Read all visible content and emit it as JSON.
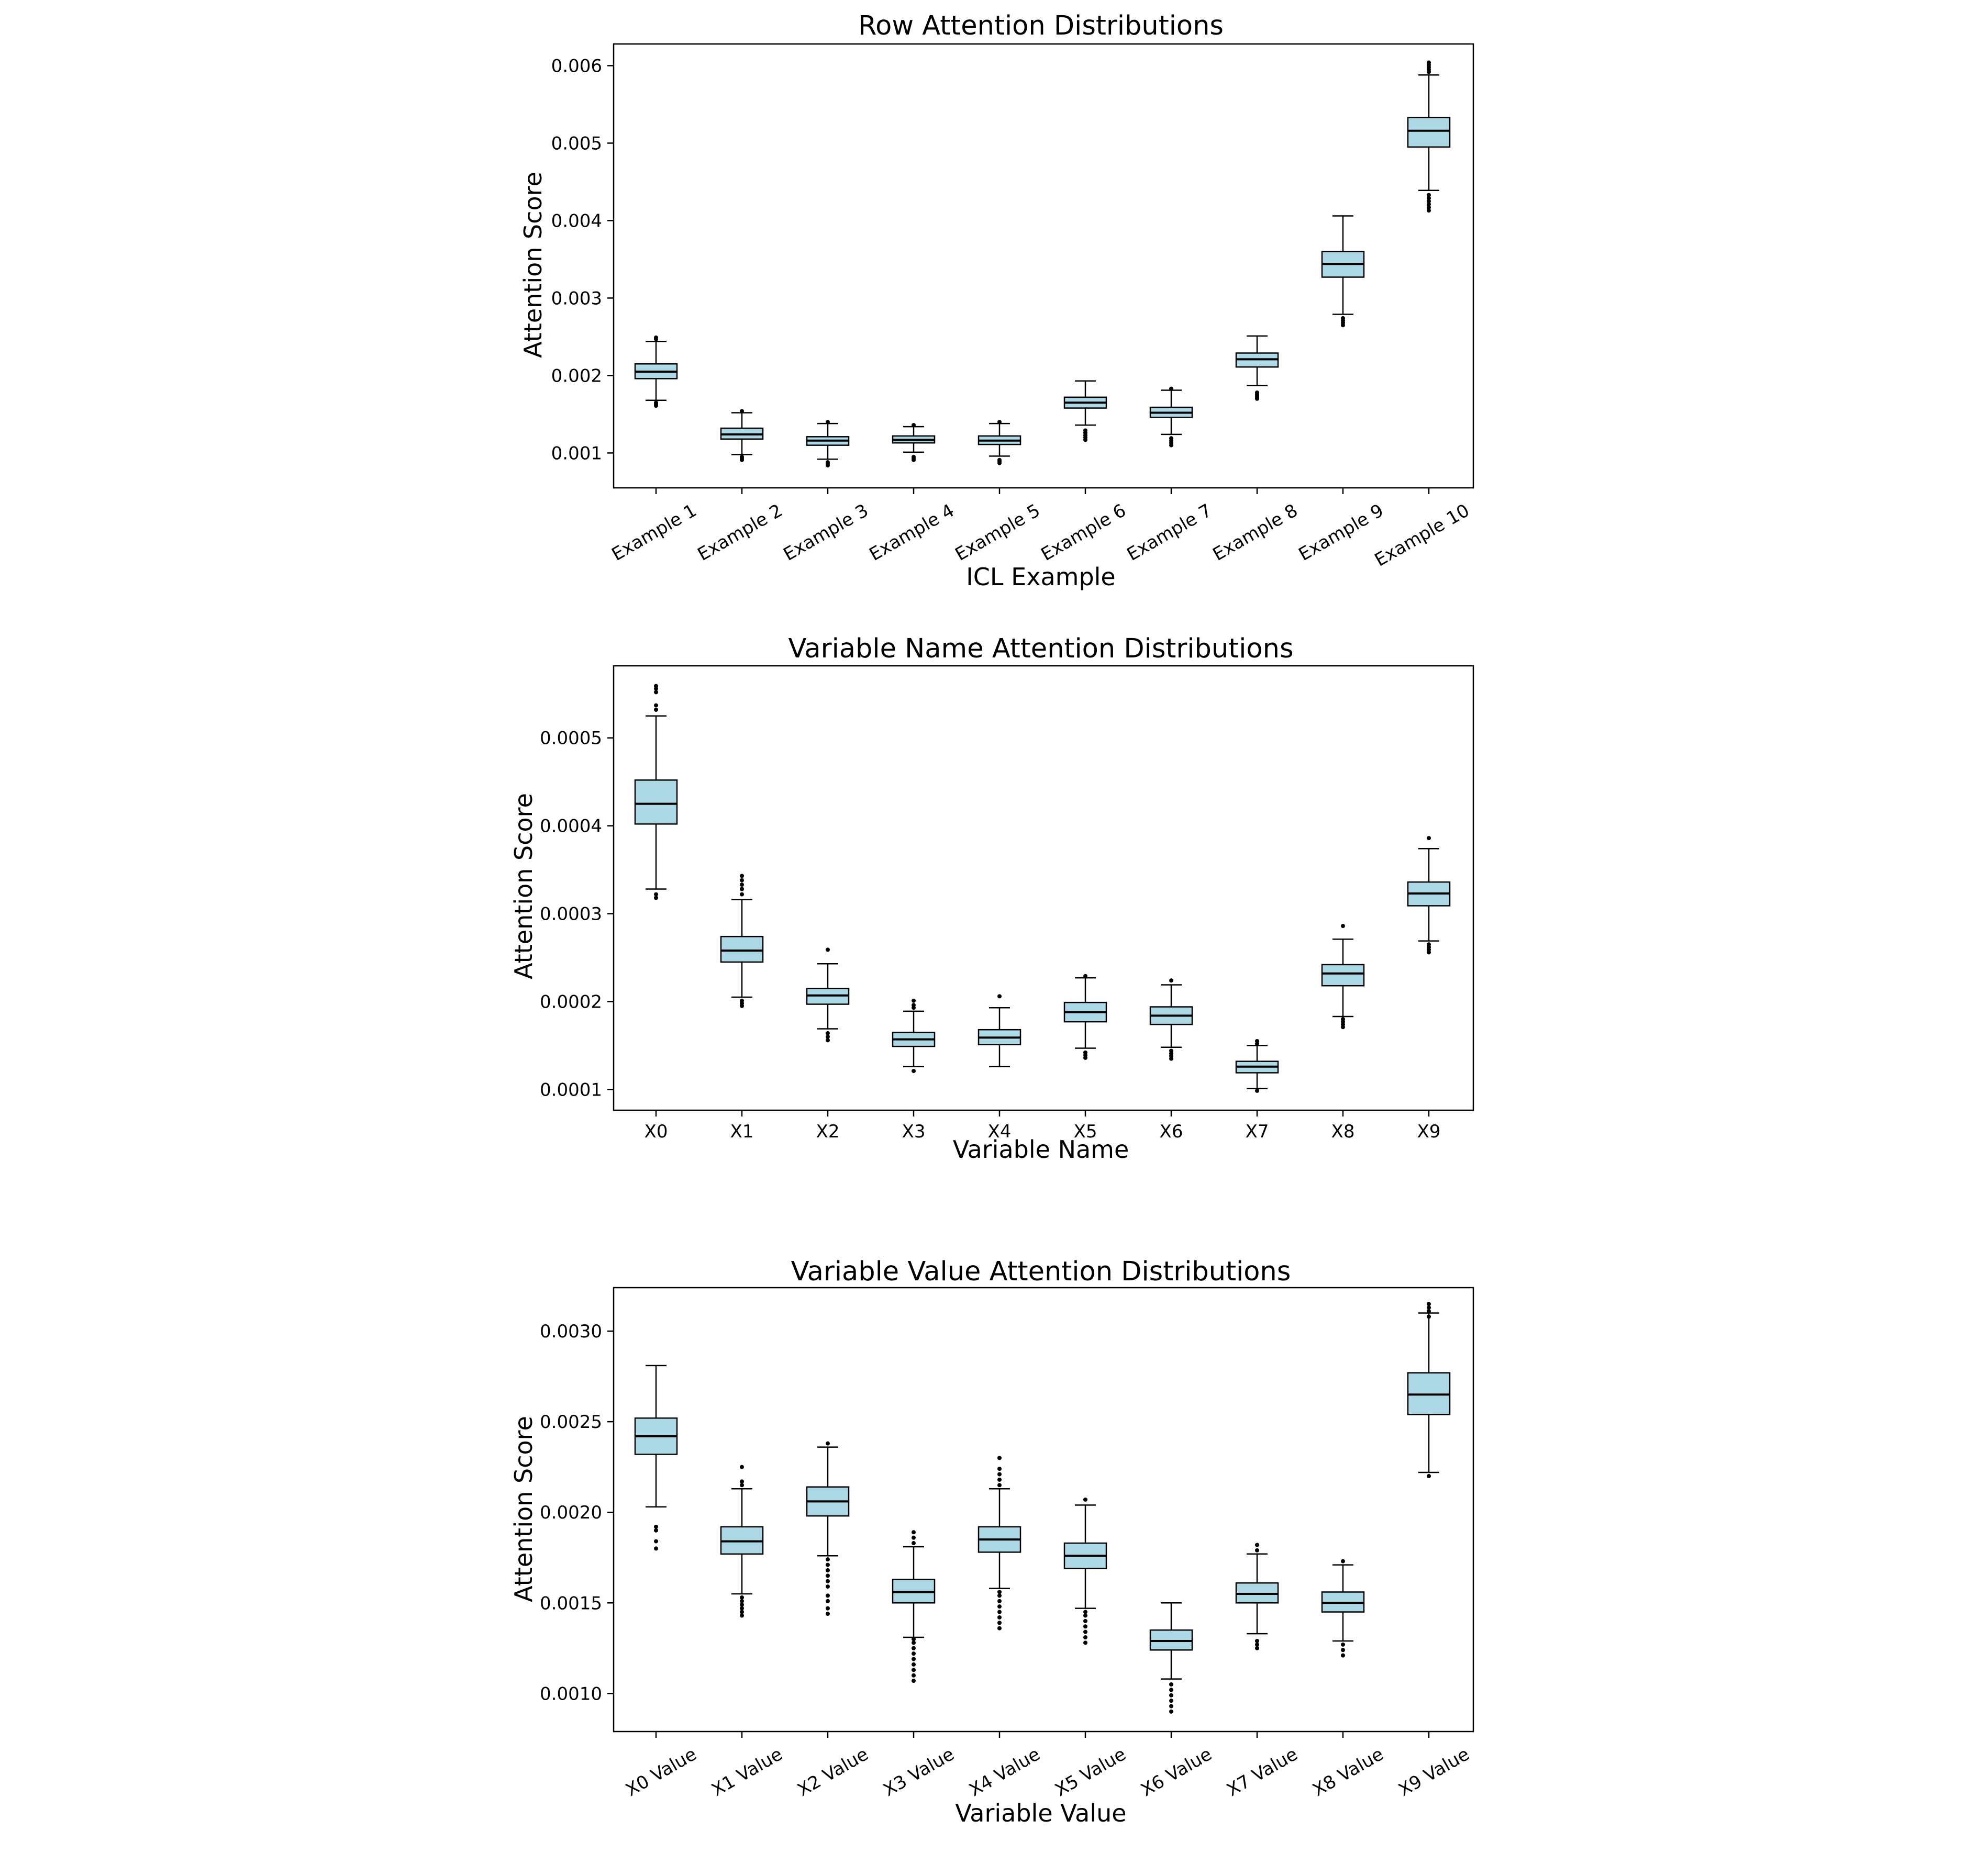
{
  "colors": {
    "box_fill": "#add8e6",
    "line": "#000000",
    "background": "#ffffff"
  },
  "chart_data": [
    {
      "type": "box",
      "title": "Row Attention Distributions",
      "xlabel": "ICL Example",
      "ylabel": "Attention Score",
      "categories": [
        "Example 1",
        "Example 2",
        "Example 3",
        "Example 4",
        "Example 5",
        "Example 6",
        "Example 7",
        "Example 8",
        "Example 9",
        "Example 10"
      ],
      "ylim": [
        0.00055,
        0.00628
      ],
      "yticks": [
        0.001,
        0.002,
        0.003,
        0.004,
        0.005,
        0.006
      ],
      "ytick_labels": [
        "0.001",
        "0.002",
        "0.003",
        "0.004",
        "0.005",
        "0.006"
      ],
      "rotate_xticks": true,
      "boxes": [
        {
          "whislo": 0.00168,
          "q1": 0.00196,
          "med": 0.00205,
          "q3": 0.00215,
          "whishi": 0.00244,
          "fliers": [
            0.00161,
            0.00163,
            0.00165,
            0.00247,
            0.00249
          ]
        },
        {
          "whislo": 0.00098,
          "q1": 0.00118,
          "med": 0.00124,
          "q3": 0.00132,
          "whislo_note": "",
          "whishi": 0.00152,
          "fliers": [
            0.00091,
            0.00093,
            0.00095,
            0.00154
          ]
        },
        {
          "whislo": 0.00092,
          "q1": 0.0011,
          "med": 0.00116,
          "q3": 0.00121,
          "whishi": 0.00138,
          "fliers": [
            0.00084,
            0.00086,
            0.00088,
            0.0014
          ]
        },
        {
          "whislo": 0.00101,
          "q1": 0.00113,
          "med": 0.00117,
          "q3": 0.00122,
          "whishi": 0.00134,
          "fliers": [
            0.00091,
            0.00093,
            0.00095,
            0.00136
          ]
        },
        {
          "whislo": 0.00096,
          "q1": 0.00111,
          "med": 0.00116,
          "q3": 0.00122,
          "whishi": 0.00138,
          "fliers": [
            0.00087,
            0.00089,
            0.00091,
            0.0014
          ]
        },
        {
          "whislo": 0.00136,
          "q1": 0.00158,
          "med": 0.00165,
          "q3": 0.00172,
          "whishi": 0.00193,
          "fliers": [
            0.00117,
            0.0012,
            0.00123,
            0.00126,
            0.00129
          ]
        },
        {
          "whislo": 0.00124,
          "q1": 0.00146,
          "med": 0.00152,
          "q3": 0.00159,
          "whishi": 0.00181,
          "fliers": [
            0.0011,
            0.00113,
            0.00116,
            0.00119,
            0.00183
          ]
        },
        {
          "whislo": 0.00187,
          "q1": 0.00211,
          "med": 0.00221,
          "q3": 0.00229,
          "whishi": 0.00251,
          "fliers": [
            0.0017,
            0.00172,
            0.00174,
            0.00176,
            0.00178
          ]
        },
        {
          "whislo": 0.00279,
          "q1": 0.00327,
          "med": 0.00344,
          "q3": 0.0036,
          "whishi": 0.00406,
          "fliers": [
            0.00265,
            0.00268,
            0.00271,
            0.00274
          ]
        },
        {
          "whislo": 0.00439,
          "q1": 0.00495,
          "med": 0.00516,
          "q3": 0.00533,
          "whishi": 0.00588,
          "fliers": [
            0.00413,
            0.00417,
            0.00421,
            0.00425,
            0.00429,
            0.00433,
            0.00592,
            0.00595,
            0.00598,
            0.00601,
            0.00604
          ]
        }
      ]
    },
    {
      "type": "box",
      "title": "Variable Name Attention Distributions",
      "xlabel": "Variable Name",
      "ylabel": "Attention Score",
      "categories": [
        "X0",
        "X1",
        "X2",
        "X3",
        "X4",
        "X5",
        "X6",
        "X7",
        "X8",
        "X9"
      ],
      "ylim": [
        7.64e-05,
        0.000582
      ],
      "yticks": [
        0.0001,
        0.0002,
        0.0003,
        0.0004,
        0.0005
      ],
      "ytick_labels": [
        "0.0001",
        "0.0002",
        "0.0003",
        "0.0004",
        "0.0005"
      ],
      "rotate_xticks": false,
      "boxes": [
        {
          "whislo": 0.000328,
          "q1": 0.000402,
          "med": 0.000425,
          "q3": 0.000452,
          "whishi": 0.000525,
          "fliers": [
            0.000318,
            0.000322,
            0.000532,
            0.000537,
            0.000552,
            0.000556,
            0.000559
          ]
        },
        {
          "whislo": 0.000205,
          "q1": 0.000245,
          "med": 0.000258,
          "q3": 0.000274,
          "whishi": 0.000316,
          "fliers": [
            0.000195,
            0.000198,
            0.000201,
            0.000322,
            0.000328,
            0.000333,
            0.000338,
            0.000343
          ]
        },
        {
          "whislo": 0.000169,
          "q1": 0.000197,
          "med": 0.000207,
          "q3": 0.000215,
          "whishi": 0.000243,
          "fliers": [
            0.000156,
            0.00016,
            0.000164,
            0.000259
          ]
        },
        {
          "whislo": 0.000126,
          "q1": 0.000149,
          "med": 0.000157,
          "q3": 0.000165,
          "whishi": 0.000189,
          "fliers": [
            0.000121,
            0.000193,
            0.000196,
            0.000201
          ]
        },
        {
          "whislo": 0.000126,
          "q1": 0.000151,
          "med": 0.000159,
          "q3": 0.000168,
          "whishi": 0.000193,
          "fliers": [
            0.000206
          ]
        },
        {
          "whislo": 0.000147,
          "q1": 0.000177,
          "med": 0.000188,
          "q3": 0.000199,
          "whishi": 0.000227,
          "fliers": [
            0.000136,
            0.000139,
            0.000142,
            0.000229
          ]
        },
        {
          "whislo": 0.000148,
          "q1": 0.000174,
          "med": 0.000184,
          "q3": 0.000194,
          "whishi": 0.000219,
          "fliers": [
            0.000135,
            0.000138,
            0.000141,
            0.000144,
            0.000224
          ]
        },
        {
          "whislo": 0.000101,
          "q1": 0.000119,
          "med": 0.000126,
          "q3": 0.000132,
          "whishi": 0.00015,
          "fliers": [
            9.85e-05,
            0.000152,
            0.000155
          ]
        },
        {
          "whislo": 0.000183,
          "q1": 0.000218,
          "med": 0.000232,
          "q3": 0.000242,
          "whishi": 0.000271,
          "fliers": [
            0.000171,
            0.000174,
            0.000177,
            0.00018,
            0.000286
          ]
        },
        {
          "whislo": 0.000269,
          "q1": 0.000309,
          "med": 0.000323,
          "q3": 0.000336,
          "whishi": 0.000374,
          "fliers": [
            0.000256,
            0.000259,
            0.000262,
            0.000265,
            0.000386
          ]
        }
      ]
    },
    {
      "type": "box",
      "title": "Variable Value Attention Distributions",
      "xlabel": "Variable Value",
      "ylabel": "Attention Score",
      "categories": [
        "X0 Value",
        "X1 Value",
        "X2 Value",
        "X3 Value",
        "X4 Value",
        "X5 Value",
        "X6 Value",
        "X7 Value",
        "X8 Value",
        "X9 Value"
      ],
      "ylim": [
        0.00079,
        0.00324
      ],
      "yticks": [
        0.001,
        0.0015,
        0.002,
        0.0025,
        0.003
      ],
      "ytick_labels": [
        "0.0010",
        "0.0015",
        "0.0020",
        "0.0025",
        "0.0030"
      ],
      "rotate_xticks": true,
      "boxes": [
        {
          "whislo": 0.00203,
          "q1": 0.00232,
          "med": 0.00242,
          "q3": 0.00252,
          "whishi": 0.00281,
          "fliers": [
            0.0018,
            0.00184,
            0.0019,
            0.00192
          ]
        },
        {
          "whislo": 0.00155,
          "q1": 0.00177,
          "med": 0.00184,
          "q3": 0.00192,
          "whishi": 0.00213,
          "fliers": [
            0.00143,
            0.00145,
            0.00147,
            0.00149,
            0.00151,
            0.00153,
            0.00215,
            0.00217,
            0.00225
          ]
        },
        {
          "whislo": 0.00176,
          "q1": 0.00198,
          "med": 0.00206,
          "q3": 0.00214,
          "whishi": 0.00236,
          "fliers": [
            0.00144,
            0.00147,
            0.00151,
            0.00154,
            0.00159,
            0.00162,
            0.00165,
            0.00168,
            0.00171,
            0.00174,
            0.00238
          ]
        },
        {
          "whislo": 0.00131,
          "q1": 0.0015,
          "med": 0.00156,
          "q3": 0.00163,
          "whishi": 0.00181,
          "fliers": [
            0.00107,
            0.0011,
            0.00113,
            0.00116,
            0.00119,
            0.00122,
            0.00125,
            0.00128,
            0.0013,
            0.00183,
            0.00186,
            0.00189
          ]
        },
        {
          "whislo": 0.00158,
          "q1": 0.00178,
          "med": 0.00185,
          "q3": 0.00192,
          "whishi": 0.00213,
          "fliers": [
            0.00136,
            0.00139,
            0.00142,
            0.00145,
            0.00148,
            0.00151,
            0.00154,
            0.00156,
            0.00215,
            0.00218,
            0.00221,
            0.00224,
            0.0023
          ]
        },
        {
          "whislo": 0.00147,
          "q1": 0.00169,
          "med": 0.00176,
          "q3": 0.00183,
          "whishi": 0.00204,
          "fliers": [
            0.00128,
            0.00131,
            0.00134,
            0.00137,
            0.0014,
            0.00143,
            0.00145,
            0.00207
          ]
        },
        {
          "whislo": 0.00108,
          "q1": 0.00124,
          "med": 0.00129,
          "q3": 0.00135,
          "whishi": 0.0015,
          "fliers": [
            0.0009,
            0.00093,
            0.00096,
            0.00099,
            0.00102,
            0.00105
          ]
        },
        {
          "whislo": 0.00133,
          "q1": 0.0015,
          "med": 0.00155,
          "q3": 0.00161,
          "whishi": 0.00177,
          "fliers": [
            0.00125,
            0.00127,
            0.00129,
            0.00179,
            0.00182
          ]
        },
        {
          "whislo": 0.00129,
          "q1": 0.00145,
          "med": 0.0015,
          "q3": 0.00156,
          "whishi": 0.00171,
          "fliers": [
            0.00121,
            0.00124,
            0.00127,
            0.00173
          ]
        },
        {
          "whislo": 0.00222,
          "q1": 0.00254,
          "med": 0.00265,
          "q3": 0.00277,
          "whishi": 0.0031,
          "fliers": [
            0.0022,
            0.00308,
            0.00311,
            0.00313,
            0.00315
          ]
        }
      ]
    }
  ]
}
